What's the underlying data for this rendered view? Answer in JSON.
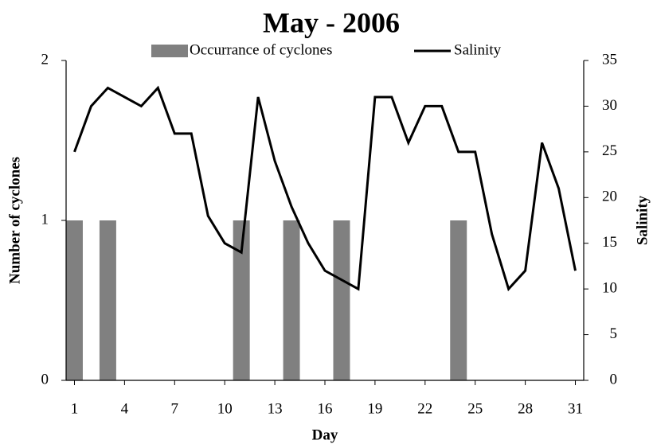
{
  "chart_data": {
    "type": "bar",
    "title": "May - 2006",
    "x_label": "Day",
    "y_label": "Number of cyclones",
    "y2_label": "Salinity",
    "x": [
      1,
      2,
      3,
      4,
      5,
      6,
      7,
      8,
      9,
      10,
      11,
      12,
      13,
      14,
      15,
      16,
      17,
      18,
      19,
      20,
      21,
      22,
      23,
      24,
      25,
      26,
      27,
      28,
      29,
      30,
      31
    ],
    "xlim": [
      0.5,
      31.5
    ],
    "xticks": [
      1,
      4,
      7,
      10,
      13,
      16,
      19,
      22,
      25,
      28,
      31
    ],
    "ylim": [
      0,
      2
    ],
    "yticks": [
      0,
      1,
      2
    ],
    "y2lim": [
      0,
      35
    ],
    "y2ticks": [
      0,
      5,
      10,
      15,
      20,
      25,
      30,
      35
    ],
    "legend": "top",
    "series": [
      {
        "name": "Occurrance of cyclones",
        "type": "bar",
        "color": "#808080",
        "values": [
          1,
          0,
          1,
          0,
          0,
          0,
          0,
          0,
          0,
          0,
          1,
          0,
          0,
          1,
          0,
          0,
          1,
          0,
          0,
          0,
          0,
          0,
          0,
          1,
          0,
          0,
          0,
          0,
          0,
          0,
          0
        ]
      },
      {
        "name": "Salinity",
        "type": "line",
        "axis": "y2",
        "color": "#000000",
        "values": [
          25,
          30,
          32,
          31,
          30,
          32,
          27,
          27,
          18,
          15,
          14,
          31,
          24,
          19,
          15,
          12,
          11,
          10,
          31,
          31,
          26,
          30,
          30,
          25,
          25,
          16,
          10,
          12,
          26,
          21,
          12
        ]
      }
    ]
  }
}
